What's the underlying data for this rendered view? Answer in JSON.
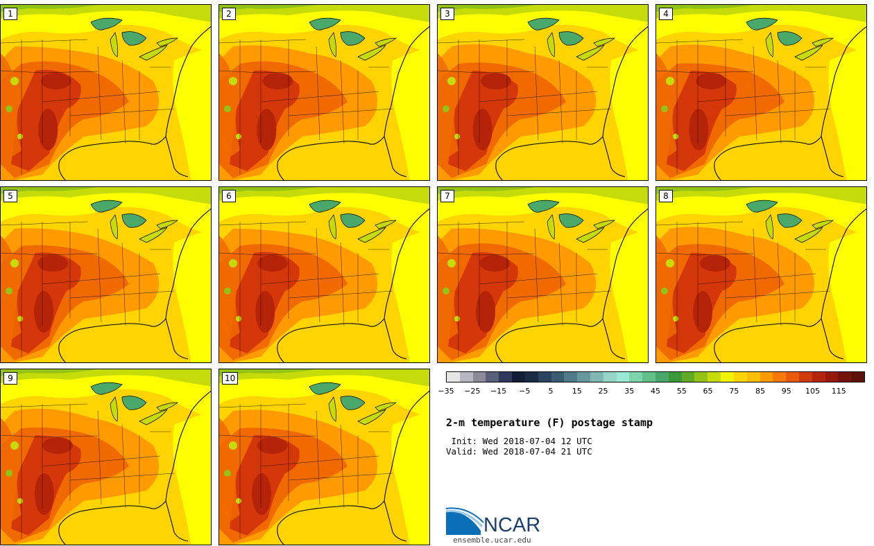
{
  "panels": [
    {
      "label": "1"
    },
    {
      "label": "2"
    },
    {
      "label": "3"
    },
    {
      "label": "4"
    },
    {
      "label": "5"
    },
    {
      "label": "6"
    },
    {
      "label": "7"
    },
    {
      "label": "8"
    },
    {
      "label": "9"
    },
    {
      "label": "10"
    }
  ],
  "colorbar": {
    "ticks": [
      "−35",
      "−25",
      "−15",
      "−5",
      "5",
      "15",
      "25",
      "35",
      "45",
      "55",
      "65",
      "75",
      "85",
      "95",
      "105",
      "115"
    ],
    "colors": [
      "#e6e6e6",
      "#b7b7c2",
      "#8a8a99",
      "#5a607a",
      "#2f3a5a",
      "#151e38",
      "#1c2a44",
      "#2b4560",
      "#3a5b74",
      "#4f7a8a",
      "#69999f",
      "#84b6b3",
      "#97d5c8",
      "#9be8d6",
      "#7fd3ab",
      "#62bf8a",
      "#4aa86a",
      "#3a9a3a",
      "#62ac24",
      "#93c314",
      "#c6dc0a",
      "#f2f200",
      "#ffd400",
      "#ffbf00",
      "#ff9a00",
      "#f77a08",
      "#e85a08",
      "#cf3a08",
      "#b52408",
      "#951808",
      "#751306",
      "#5c1206"
    ],
    "tick_index_offsets": [
      0,
      2,
      4,
      6,
      8,
      10,
      12,
      14,
      16,
      18,
      20,
      22,
      24,
      26,
      28,
      30
    ]
  },
  "title": "2-m temperature (F) postage stamp",
  "init_line": " Init: Wed 2018-07-04 12 UTC",
  "valid_line": "Valid: Wed 2018-07-04 21 UTC",
  "logo": {
    "text": "NCAR",
    "url": "ensemble.ucar.edu"
  },
  "palette": {
    "yellow": "#ffff00",
    "gold": "#ffd400",
    "orange": "#ff9a00",
    "darkorange": "#f06a00",
    "red": "#d4380a",
    "deepred": "#b52408",
    "lake": "#4aa86a",
    "green": "#93c314"
  }
}
